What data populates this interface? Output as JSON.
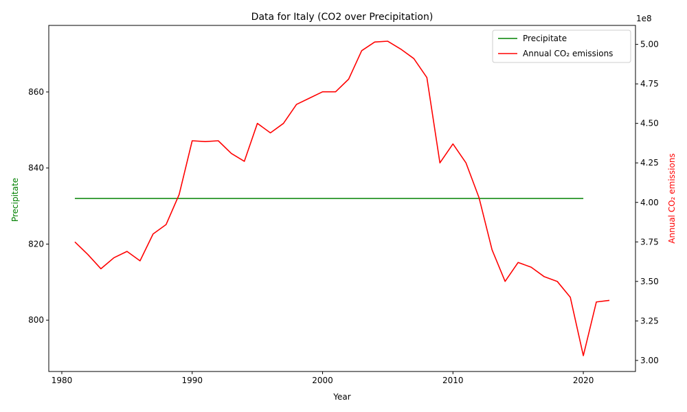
{
  "chart_data": {
    "type": "line",
    "title": "Data for Italy (CO2 over Precipitation)",
    "xlabel": "Year",
    "ylabel_left": "Precipitate",
    "ylabel_right": "Annual CO₂ emissions",
    "right_axis_offset_label": "1e8",
    "xlim": [
      1979,
      2024
    ],
    "ylim_left": [
      786.5,
      877.5
    ],
    "ylim_right": [
      2.93,
      5.12
    ],
    "x_ticks": [
      1980,
      1990,
      2000,
      2010,
      2020
    ],
    "left_ticks": [
      800,
      820,
      840,
      860
    ],
    "right_ticks": [
      3.0,
      3.25,
      3.5,
      3.75,
      4.0,
      4.25,
      4.5,
      4.75,
      5.0
    ],
    "right_tick_labels": [
      "3.00",
      "3.25",
      "3.50",
      "3.75",
      "4.00",
      "4.25",
      "4.50",
      "4.75",
      "5.00"
    ],
    "legend_position": "top-right",
    "grid": false,
    "series": [
      {
        "name": "Precipitate",
        "axis": "left",
        "color": "#008000",
        "x": [
          1981,
          2020
        ],
        "y": [
          832,
          832
        ]
      },
      {
        "name": "Annual CO₂ emissions",
        "axis": "right",
        "color": "#ff0000",
        "x": [
          1981,
          1982,
          1983,
          1984,
          1985,
          1986,
          1987,
          1988,
          1989,
          1990,
          1991,
          1992,
          1993,
          1994,
          1995,
          1996,
          1997,
          1998,
          1999,
          2000,
          2001,
          2002,
          2003,
          2004,
          2005,
          2006,
          2007,
          2008,
          2009,
          2010,
          2011,
          2012,
          2013,
          2014,
          2015,
          2016,
          2017,
          2018,
          2019,
          2020,
          2021,
          2022
        ],
        "y": [
          3.75,
          3.67,
          3.58,
          3.65,
          3.69,
          3.63,
          3.8,
          3.86,
          4.05,
          4.39,
          4.385,
          4.39,
          4.31,
          4.26,
          4.5,
          4.44,
          4.5,
          4.62,
          4.66,
          4.7,
          4.7,
          4.78,
          4.96,
          5.015,
          5.02,
          4.97,
          4.91,
          4.79,
          4.25,
          4.37,
          4.25,
          4.03,
          3.7,
          3.5,
          3.62,
          3.59,
          3.53,
          3.5,
          3.4,
          3.03,
          3.37,
          3.38
        ]
      }
    ]
  }
}
